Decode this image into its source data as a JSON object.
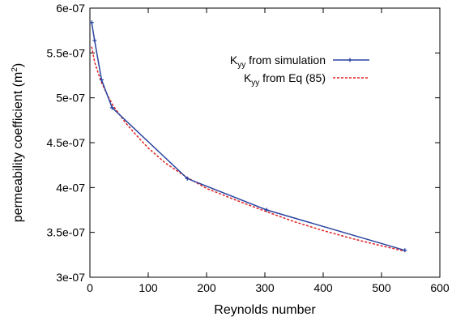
{
  "chart_data": {
    "type": "line",
    "xlabel": "Reynolds number",
    "ylabel": {
      "prefix": "permeability coefficient (m",
      "superscript": "2",
      "suffix": ")"
    },
    "xlim": [
      0,
      600
    ],
    "ylim": [
      3e-07,
      6e-07
    ],
    "x_ticks": [
      {
        "value": 0,
        "label": "0"
      },
      {
        "value": 100,
        "label": "100"
      },
      {
        "value": 200,
        "label": "200"
      },
      {
        "value": 300,
        "label": "300"
      },
      {
        "value": 400,
        "label": "400"
      },
      {
        "value": 500,
        "label": "500"
      },
      {
        "value": 600,
        "label": "600"
      }
    ],
    "y_ticks": [
      {
        "value": 3e-07,
        "label": "3e-07"
      },
      {
        "value": 3.5e-07,
        "label": "3.5e-07"
      },
      {
        "value": 4e-07,
        "label": "4e-07"
      },
      {
        "value": 4.5e-07,
        "label": "4.5e-07"
      },
      {
        "value": 5e-07,
        "label": "5e-07"
      },
      {
        "value": 5.5e-07,
        "label": "5.5e-07"
      },
      {
        "value": 6e-07,
        "label": "6e-07"
      }
    ],
    "grid": false,
    "legend_position": "top-right",
    "series": [
      {
        "name": {
          "main": "K",
          "subscript": "yy",
          "rest": " from simulation"
        },
        "style": "solid line with plus markers",
        "color": "#2944a0",
        "x": [
          3,
          8,
          20,
          38,
          167,
          303,
          540
        ],
        "y": [
          5.84e-07,
          5.64e-07,
          5.2e-07,
          4.89e-07,
          4.1e-07,
          3.75e-07,
          3.3e-07
        ]
      },
      {
        "name": {
          "main": "K",
          "subscript": "yy",
          "rest": " from Eq (85)"
        },
        "style": "dashed line",
        "color": "#e02020",
        "x": [
          3,
          8,
          15,
          20,
          30,
          40,
          60,
          80,
          100,
          130,
          167,
          200,
          250,
          303,
          350,
          400,
          450,
          500,
          540
        ],
        "y": [
          5.57e-07,
          5.4e-07,
          5.26e-07,
          5.17e-07,
          5.03e-07,
          4.91e-07,
          4.73e-07,
          4.58e-07,
          4.44e-07,
          4.27e-07,
          4.11e-07,
          3.99e-07,
          3.86e-07,
          3.73e-07,
          3.62e-07,
          3.52e-07,
          3.43e-07,
          3.35e-07,
          3.29e-07
        ]
      }
    ]
  }
}
